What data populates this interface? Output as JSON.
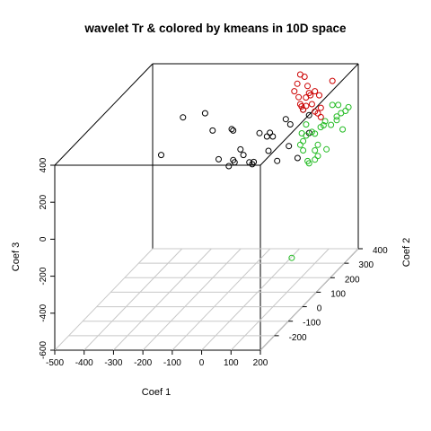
{
  "chart_data": {
    "type": "scatter3d",
    "title": "wavelet Tr & colored by kmeans in 10D space",
    "xlabel": "Coef 1",
    "ylabel": "Coef 2",
    "zlabel": "Coef 3",
    "xlim": [
      -500,
      200
    ],
    "ylim": [
      -300,
      400
    ],
    "zlim": [
      -600,
      400
    ],
    "x_ticks": [
      -500,
      -400,
      -300,
      -200,
      -100,
      0,
      100,
      200
    ],
    "y_ticks": [
      -200,
      -100,
      0,
      100,
      200,
      300,
      400
    ],
    "z_ticks": [
      -600,
      -400,
      -200,
      0,
      200,
      400
    ],
    "x_tick_labels": [
      "-500",
      "-400",
      "-300",
      "-200",
      "-100",
      "0",
      "100",
      "200"
    ],
    "y_tick_labels": [
      "-200",
      "-100",
      "0",
      "100",
      "200",
      "300",
      "400"
    ],
    "z_tick_labels": [
      "-600",
      "-400",
      "-200",
      "0",
      "200",
      "400"
    ],
    "base_grid": true,
    "marker": "open circle",
    "colors": {
      "cluster_black": "#000000",
      "cluster_red": "#cc0000",
      "cluster_green": "#22bb22"
    },
    "series": [
      {
        "color_key": "cluster_black",
        "points": [
          [
            -390,
            230,
            40
          ],
          [
            -330,
            260,
            220
          ],
          [
            -250,
            250,
            250
          ],
          [
            -210,
            220,
            180
          ],
          [
            -150,
            230,
            180
          ],
          [
            -140,
            220,
            180
          ],
          [
            -60,
            240,
            150
          ],
          [
            -30,
            230,
            140
          ],
          [
            -10,
            230,
            140
          ],
          [
            -20,
            230,
            160
          ],
          [
            -20,
            220,
            70
          ],
          [
            20,
            260,
            210
          ],
          [
            40,
            250,
            190
          ],
          [
            40,
            240,
            80
          ],
          [
            60,
            300,
            230
          ],
          [
            80,
            300,
            200
          ],
          [
            -120,
            230,
            70
          ],
          [
            -140,
            220,
            20
          ],
          [
            -160,
            230,
            -20
          ],
          [
            -110,
            230,
            40
          ],
          [
            -80,
            230,
            -10
          ],
          [
            -90,
            230,
            0
          ],
          [
            -70,
            220,
            10
          ],
          [
            -180,
            200,
            40
          ],
          [
            -140,
            230,
            0
          ],
          [
            0,
            240,
            0
          ],
          [
            60,
            260,
            0
          ],
          [
            90,
            280,
            120
          ]
        ]
      },
      {
        "color_key": "cluster_red",
        "points": [
          [
            50,
            300,
            420
          ],
          [
            60,
            310,
            400
          ],
          [
            40,
            300,
            370
          ],
          [
            70,
            310,
            350
          ],
          [
            30,
            300,
            330
          ],
          [
            40,
            310,
            290
          ],
          [
            50,
            300,
            260
          ],
          [
            60,
            320,
            280
          ],
          [
            80,
            300,
            320
          ],
          [
            80,
            310,
            300
          ],
          [
            90,
            300,
            260
          ],
          [
            100,
            300,
            220
          ],
          [
            110,
            300,
            210
          ],
          [
            120,
            300,
            190
          ],
          [
            120,
            300,
            240
          ],
          [
            110,
            310,
            300
          ],
          [
            100,
            300,
            330
          ],
          [
            60,
            300,
            230
          ],
          [
            50,
            310,
            240
          ],
          [
            70,
            300,
            250
          ],
          [
            150,
            320,
            370
          ]
        ]
      },
      {
        "color_key": "cluster_green",
        "points": [
          [
            150,
            320,
            240
          ],
          [
            170,
            320,
            240
          ],
          [
            200,
            330,
            220
          ],
          [
            190,
            330,
            200
          ],
          [
            170,
            340,
            180
          ],
          [
            160,
            330,
            150
          ],
          [
            120,
            320,
            130
          ],
          [
            110,
            320,
            120
          ],
          [
            100,
            300,
            100
          ],
          [
            90,
            300,
            110
          ],
          [
            70,
            300,
            90
          ],
          [
            60,
            300,
            60
          ],
          [
            50,
            300,
            40
          ],
          [
            60,
            300,
            10
          ],
          [
            100,
            300,
            10
          ],
          [
            110,
            300,
            40
          ],
          [
            130,
            320,
            0
          ],
          [
            110,
            300,
            -20
          ],
          [
            100,
            300,
            -40
          ],
          [
            80,
            300,
            -60
          ],
          [
            60,
            290,
            110
          ],
          [
            70,
            300,
            150
          ],
          [
            160,
            330,
            170
          ],
          [
            180,
            330,
            100
          ],
          [
            150,
            310,
            140
          ],
          [
            130,
            310,
            160
          ],
          [
            80,
            290,
            -40
          ],
          [
            40,
            260,
            -540
          ]
        ]
      }
    ]
  }
}
